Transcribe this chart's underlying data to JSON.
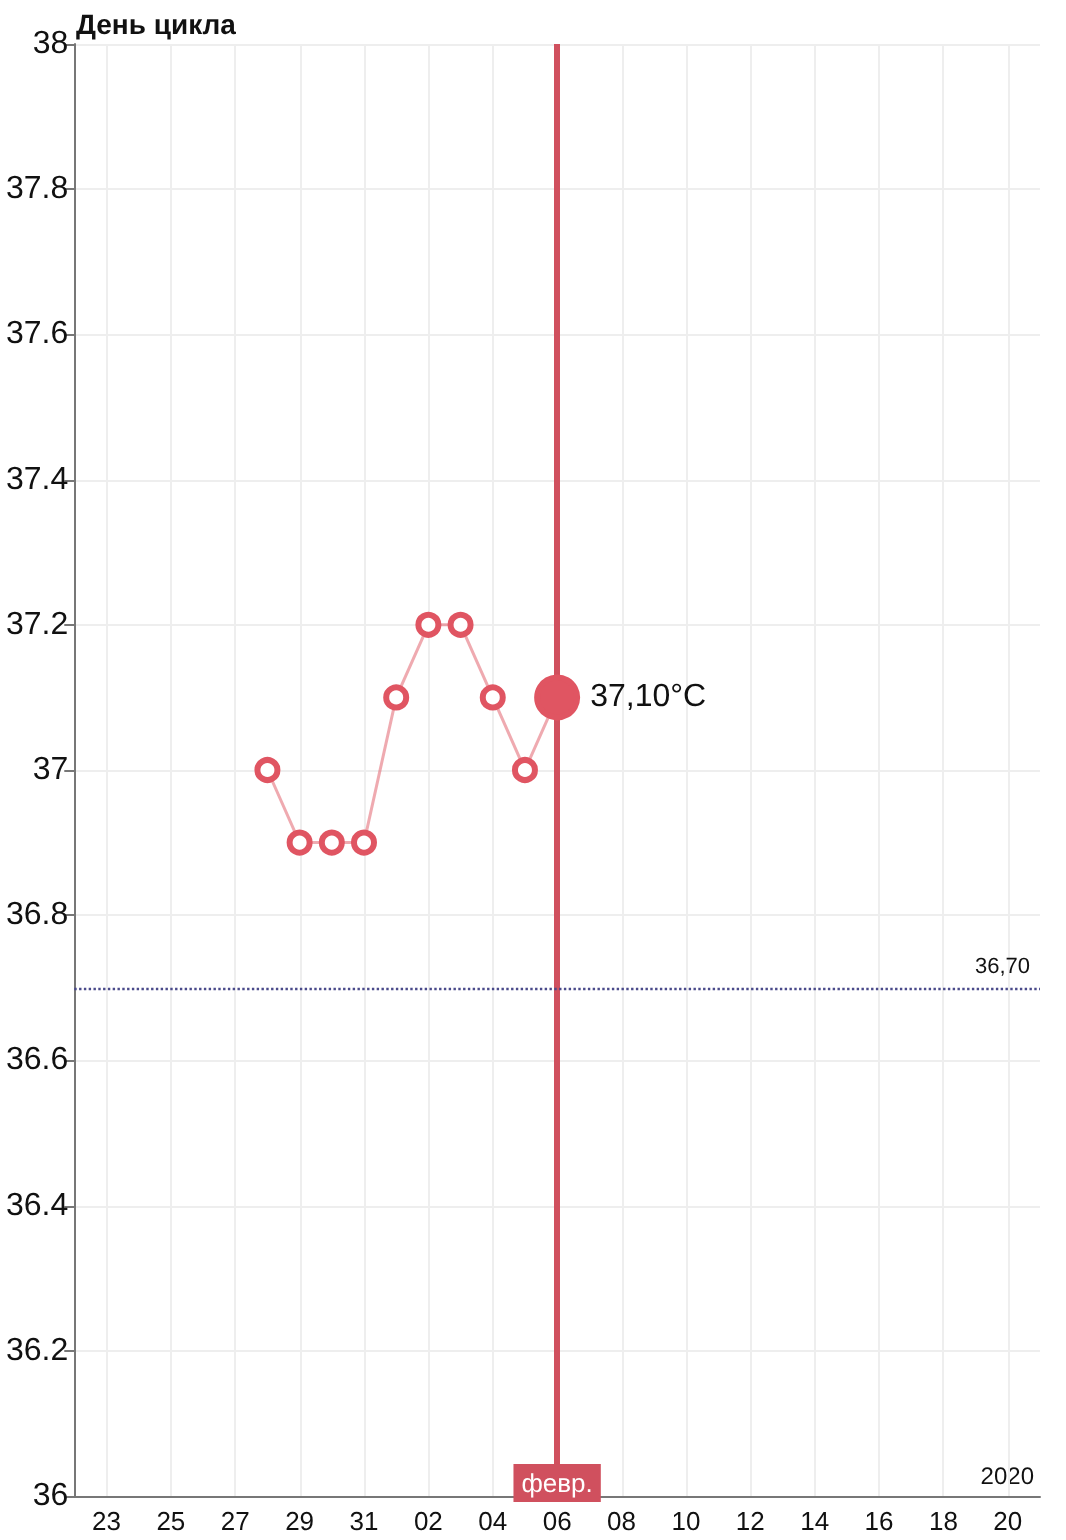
{
  "chart_data": {
    "type": "line",
    "title": "День цикла",
    "x": [
      "2020-01-28",
      "2020-01-29",
      "2020-01-30",
      "2020-01-31",
      "2020-02-01",
      "2020-02-02",
      "2020-02-03",
      "2020-02-04",
      "2020-02-05",
      "2020-02-06"
    ],
    "series": [
      {
        "color": "#e05562",
        "values": [
          37.0,
          36.9,
          36.9,
          36.9,
          37.1,
          37.2,
          37.2,
          37.1,
          37.0,
          37.1
        ],
        "value_labels": [
          null,
          null,
          null,
          null,
          null,
          null,
          null,
          null,
          null,
          "37,10°C"
        ]
      }
    ],
    "xlim": [
      "2020-01-22",
      "2020-02-21"
    ],
    "xticks": [
      {
        "value": "2020-01-23",
        "label": "23"
      },
      {
        "value": "2020-01-25",
        "label": "25"
      },
      {
        "value": "2020-01-27",
        "label": "27"
      },
      {
        "value": "2020-01-29",
        "label": "29"
      },
      {
        "value": "2020-01-31",
        "label": "31"
      },
      {
        "value": "2020-02-02",
        "label": "02"
      },
      {
        "value": "2020-02-04",
        "label": "04"
      },
      {
        "value": "2020-02-06",
        "label": "06"
      },
      {
        "value": "2020-02-08",
        "label": "08"
      },
      {
        "value": "2020-02-10",
        "label": "10"
      },
      {
        "value": "2020-02-12",
        "label": "12"
      },
      {
        "value": "2020-02-14",
        "label": "14"
      },
      {
        "value": "2020-02-16",
        "label": "16"
      },
      {
        "value": "2020-02-18",
        "label": "18"
      },
      {
        "value": "2020-02-20",
        "label": "20"
      }
    ],
    "ylim": [
      36,
      38
    ],
    "yticks": [
      36,
      36.2,
      36.4,
      36.6,
      36.8,
      37,
      37.2,
      37.4,
      37.6,
      37.8,
      38
    ],
    "ref_lines": [
      {
        "axis": "x",
        "value": "2020-02-06",
        "label": "февр.",
        "color": "#d0505e",
        "line_style": "solid"
      },
      {
        "axis": "y",
        "value": 36.7,
        "label": "36,70",
        "color": "#4a4a8a",
        "line_style": "dotted"
      }
    ],
    "annotations": [
      "2020"
    ],
    "grid": true,
    "marker": "circle",
    "line_style": "solid"
  }
}
